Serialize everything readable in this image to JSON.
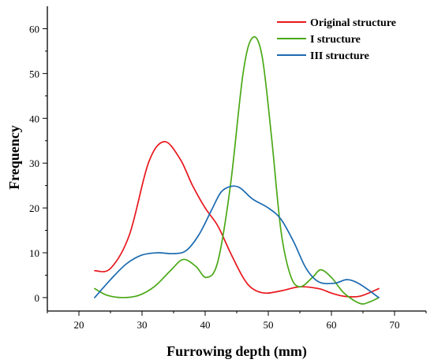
{
  "chart_data": {
    "type": "line",
    "xlabel": "Furrowing depth (mm)",
    "ylabel": "Frequency",
    "xlim": [
      15,
      75
    ],
    "ylim": [
      -3,
      65
    ],
    "xticks": [
      20,
      30,
      40,
      50,
      60,
      70
    ],
    "yticks": [
      0,
      10,
      20,
      30,
      40,
      50,
      60
    ],
    "grid": false,
    "legend_position": "top-right",
    "series": [
      {
        "name": "Original structure",
        "color": "#e8161c",
        "points": [
          [
            22.5,
            6
          ],
          [
            25,
            6.5
          ],
          [
            28,
            14
          ],
          [
            31,
            30
          ],
          [
            33.5,
            34.8
          ],
          [
            36,
            31
          ],
          [
            38,
            25
          ],
          [
            40,
            20
          ],
          [
            42,
            16
          ],
          [
            44,
            10
          ],
          [
            46,
            4.5
          ],
          [
            47.5,
            2
          ],
          [
            49.5,
            1
          ],
          [
            52,
            1.5
          ],
          [
            55,
            2.4
          ],
          [
            58,
            2
          ],
          [
            60,
            1
          ],
          [
            62,
            0.3
          ],
          [
            64.5,
            0.3
          ],
          [
            67.5,
            2
          ]
        ]
      },
      {
        "name": "I structure",
        "color": "#4aa816",
        "points": [
          [
            22.5,
            2
          ],
          [
            24.5,
            0.5
          ],
          [
            27,
            0
          ],
          [
            29.5,
            0.5
          ],
          [
            32,
            2.5
          ],
          [
            34.5,
            6
          ],
          [
            36.5,
            8.5
          ],
          [
            38.5,
            7
          ],
          [
            40.2,
            4.5
          ],
          [
            42,
            8
          ],
          [
            44,
            25
          ],
          [
            46,
            50
          ],
          [
            47.5,
            58
          ],
          [
            49,
            54
          ],
          [
            50.5,
            36
          ],
          [
            52,
            15
          ],
          [
            53.5,
            5
          ],
          [
            55,
            2.4
          ],
          [
            57,
            4.5
          ],
          [
            58.3,
            6.2
          ],
          [
            60,
            4.5
          ],
          [
            62,
            1
          ],
          [
            64.5,
            -1.3
          ],
          [
            66,
            -1
          ],
          [
            67.5,
            0
          ]
        ]
      },
      {
        "name": "III structure",
        "color": "#1a6ab0",
        "points": [
          [
            22.5,
            0
          ],
          [
            25,
            4
          ],
          [
            27.5,
            7.5
          ],
          [
            30,
            9.5
          ],
          [
            32.5,
            10
          ],
          [
            35,
            9.8
          ],
          [
            37,
            10.5
          ],
          [
            39,
            14
          ],
          [
            41,
            19.5
          ],
          [
            42.5,
            23.5
          ],
          [
            44,
            24.8
          ],
          [
            45.5,
            24.5
          ],
          [
            47.5,
            22
          ],
          [
            50,
            20
          ],
          [
            52,
            17.5
          ],
          [
            54,
            12.5
          ],
          [
            56,
            6.5
          ],
          [
            58,
            3.5
          ],
          [
            60.5,
            3.2
          ],
          [
            62.5,
            4
          ],
          [
            64.5,
            3
          ],
          [
            67.5,
            0
          ]
        ]
      }
    ]
  }
}
